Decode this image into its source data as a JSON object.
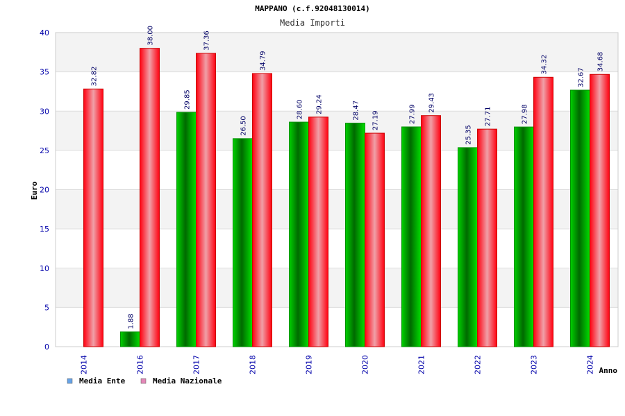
{
  "chart_data": {
    "type": "bar",
    "title": "MAPPANO (c.f.92048130014)",
    "subtitle": "Media Importi",
    "xlabel": "Anno",
    "ylabel": "Euro",
    "ylim": [
      0,
      40
    ],
    "yticks": [
      "0",
      "5",
      "10",
      "15",
      "20",
      "25",
      "30",
      "35",
      "40"
    ],
    "grid": true,
    "legend_position": "bottom-left",
    "categories": [
      "2014",
      "2016",
      "2017",
      "2018",
      "2019",
      "2020",
      "2021",
      "2022",
      "2023",
      "2024"
    ],
    "series": [
      {
        "name": "Media Ente",
        "color": "#00b000",
        "legend_color": "#66a3e8",
        "values": [
          null,
          1.88,
          29.85,
          26.5,
          28.6,
          28.47,
          27.99,
          25.35,
          27.98,
          32.67
        ],
        "labels": [
          "",
          "1.88",
          "29.85",
          "26.50",
          "28.60",
          "28.47",
          "27.99",
          "25.35",
          "27.98",
          "32.67"
        ]
      },
      {
        "name": "Media Nazionale",
        "color": "#ee0000",
        "legend_color": "#e488b8",
        "values": [
          32.82,
          38.0,
          37.36,
          34.79,
          29.24,
          27.19,
          29.43,
          27.71,
          34.32,
          34.68
        ],
        "labels": [
          "32.82",
          "38.00",
          "37.36",
          "34.79",
          "29.24",
          "27.19",
          "29.43",
          "27.71",
          "34.32",
          "34.68"
        ]
      }
    ]
  }
}
